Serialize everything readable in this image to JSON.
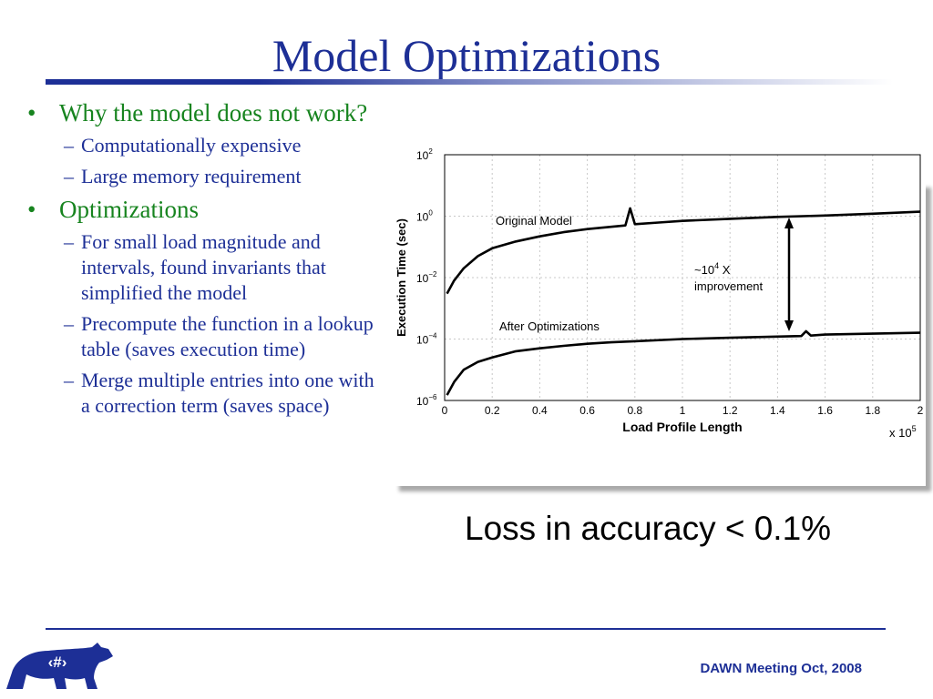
{
  "slide": {
    "title": "Model Optimizations",
    "bullets": [
      {
        "text": "Why the model does not work?",
        "subs": [
          "Computationally expensive",
          "Large memory requirement"
        ]
      },
      {
        "text": "Optimizations",
        "subs": [
          "For small load magnitude and intervals, found invariants that simplified the model",
          "Precompute the function in a lookup table (saves execution time)",
          "Merge multiple entries into one with a correction term (saves space)"
        ]
      }
    ],
    "note": "Loss in accuracy < 0.1%",
    "footer": "DAWN Meeting Oct, 2008",
    "slide_number": "‹#›",
    "logo_icon": "bear-icon",
    "colors": {
      "title": "#1d2f96",
      "bullet_l1": "#17841f",
      "bullet_l2": "#1d2f96"
    }
  },
  "chart_data": {
    "type": "line",
    "xlabel": "Load Profile Length",
    "ylabel": "Execution Time (sec)",
    "x_multiplier": "x 10",
    "x_multiplier_exp": "5",
    "x_ticks": [
      "0",
      "0.2",
      "0.4",
      "0.6",
      "0.8",
      "1",
      "1.2",
      "1.4",
      "1.6",
      "1.8",
      "2"
    ],
    "y_ticks": [
      {
        "base": "10",
        "exp": "2"
      },
      {
        "base": "10",
        "exp": "0"
      },
      {
        "base": "10",
        "exp": "−2"
      },
      {
        "base": "10",
        "exp": "−4"
      },
      {
        "base": "10",
        "exp": "−6"
      }
    ],
    "xlim": [
      0,
      200000
    ],
    "ylim_log10": [
      -6,
      2
    ],
    "y_scale": "log",
    "grid": true,
    "series": [
      {
        "name": "Original Model",
        "x": [
          1000,
          4000,
          8000,
          14000,
          20000,
          30000,
          40000,
          50000,
          60000,
          70000,
          76000,
          78000,
          80000,
          90000,
          100000,
          120000,
          140000,
          160000,
          180000,
          200000
        ],
        "y": [
          0.003,
          0.008,
          0.02,
          0.05,
          0.09,
          0.15,
          0.22,
          0.3,
          0.38,
          0.45,
          0.5,
          1.8,
          0.55,
          0.62,
          0.7,
          0.82,
          0.95,
          1.05,
          1.2,
          1.4
        ]
      },
      {
        "name": "After Optimizations",
        "x": [
          1000,
          4000,
          8000,
          14000,
          20000,
          30000,
          40000,
          50000,
          60000,
          70000,
          80000,
          100000,
          120000,
          140000,
          150000,
          152000,
          154000,
          160000,
          180000,
          200000
        ],
        "y": [
          1.5e-06,
          4e-06,
          1e-05,
          1.8e-05,
          2.5e-05,
          4e-05,
          5e-05,
          6e-05,
          7e-05,
          7.8e-05,
          8.5e-05,
          0.0001,
          0.00011,
          0.00012,
          0.000125,
          0.00018,
          0.00013,
          0.00014,
          0.00015,
          0.00016
        ]
      }
    ],
    "annotations": [
      {
        "text_base": "~10",
        "text_exp": "4",
        "text_suffix": " X",
        "text_line2": "improvement"
      }
    ]
  }
}
